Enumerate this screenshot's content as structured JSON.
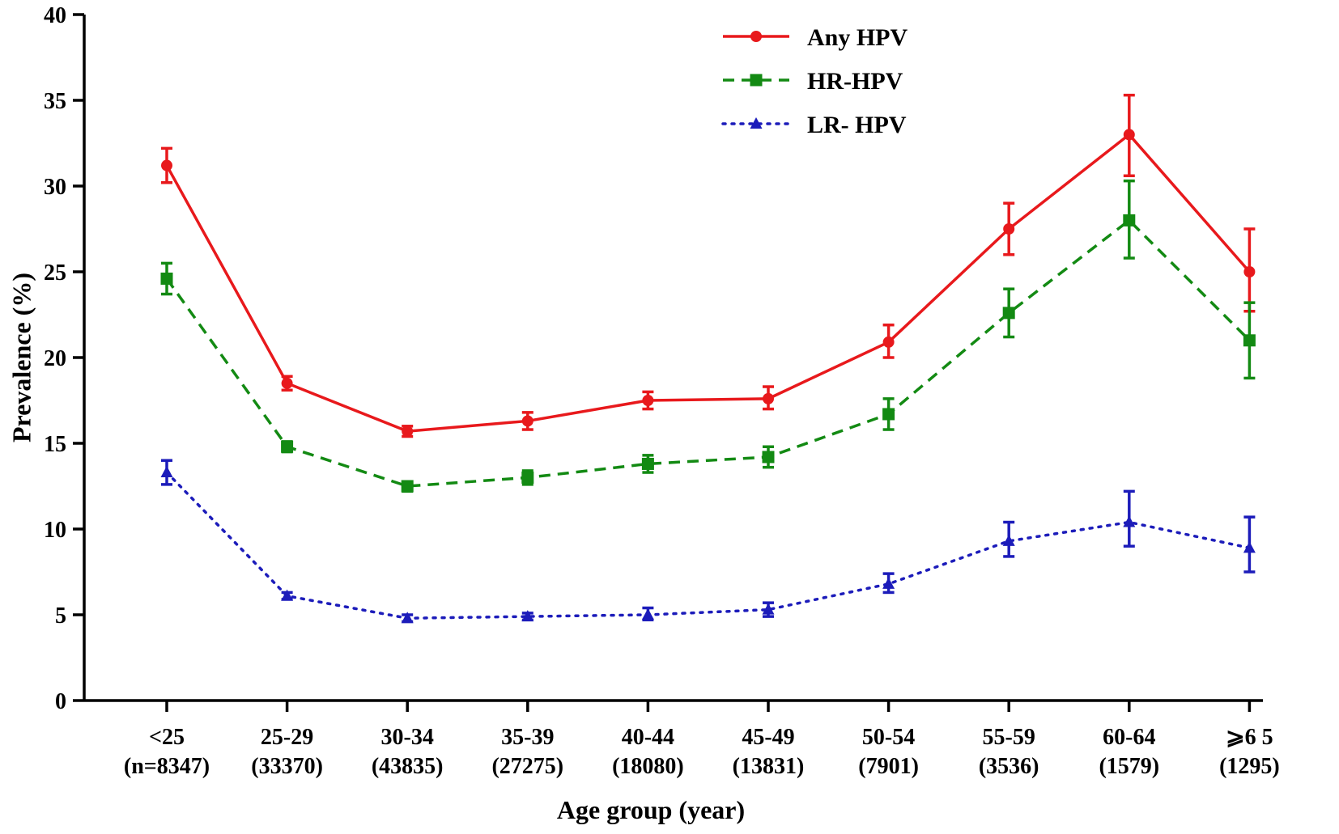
{
  "chart_data": {
    "type": "line",
    "title": "",
    "xlabel": "Age group (year)",
    "ylabel": "Prevalence (%)",
    "ylim": [
      0,
      40
    ],
    "yticks": [
      0,
      5,
      10,
      15,
      20,
      25,
      30,
      35,
      40
    ],
    "grid": false,
    "legend_position": "top-right",
    "categories": [
      {
        "group": "<25",
        "n": "(n=8347)"
      },
      {
        "group": "25-29",
        "n": "(33370)"
      },
      {
        "group": "30-34",
        "n": "(43835)"
      },
      {
        "group": "35-39",
        "n": "(27275)"
      },
      {
        "group": "40-44",
        "n": "(18080)"
      },
      {
        "group": "45-49",
        "n": "(13831)"
      },
      {
        "group": "50-54",
        "n": "(7901)"
      },
      {
        "group": "55-59",
        "n": "(3536)"
      },
      {
        "group": "60-64",
        "n": "(1579)"
      },
      {
        "group": "⩾6 5",
        "n": "(1295)"
      }
    ],
    "series": [
      {
        "name": "Any HPV",
        "color": "#e8191c",
        "line_style": "solid",
        "marker": "circle",
        "values": [
          31.2,
          18.5,
          15.7,
          16.3,
          17.5,
          17.6,
          20.9,
          27.5,
          33.0,
          25.0
        ],
        "lower": [
          30.2,
          18.1,
          15.4,
          15.8,
          17.0,
          17.0,
          20.0,
          26.0,
          30.6,
          22.7
        ],
        "upper": [
          32.2,
          18.9,
          16.0,
          16.8,
          18.0,
          18.3,
          21.9,
          29.0,
          35.3,
          27.5
        ]
      },
      {
        "name": "HR-HPV",
        "color": "#138a13",
        "line_style": "dashed",
        "marker": "square",
        "values": [
          24.6,
          14.8,
          12.5,
          13.0,
          13.8,
          14.2,
          16.7,
          22.6,
          28.0,
          21.0
        ],
        "lower": [
          23.7,
          14.5,
          12.2,
          12.6,
          13.3,
          13.6,
          15.8,
          21.2,
          25.8,
          18.8
        ],
        "upper": [
          25.5,
          15.1,
          12.7,
          13.4,
          14.3,
          14.8,
          17.6,
          24.0,
          30.3,
          23.2
        ]
      },
      {
        "name": "LR- HPV",
        "color": "#1c1cba",
        "line_style": "dotted",
        "marker": "triangle",
        "values": [
          13.3,
          6.1,
          4.8,
          4.9,
          5.0,
          5.3,
          6.8,
          9.3,
          10.4,
          8.9
        ],
        "lower": [
          12.6,
          5.9,
          4.6,
          4.7,
          4.7,
          4.9,
          6.3,
          8.4,
          9.0,
          7.5
        ],
        "upper": [
          14.0,
          6.3,
          5.0,
          5.1,
          5.4,
          5.7,
          7.4,
          10.4,
          12.2,
          10.7
        ]
      }
    ]
  }
}
